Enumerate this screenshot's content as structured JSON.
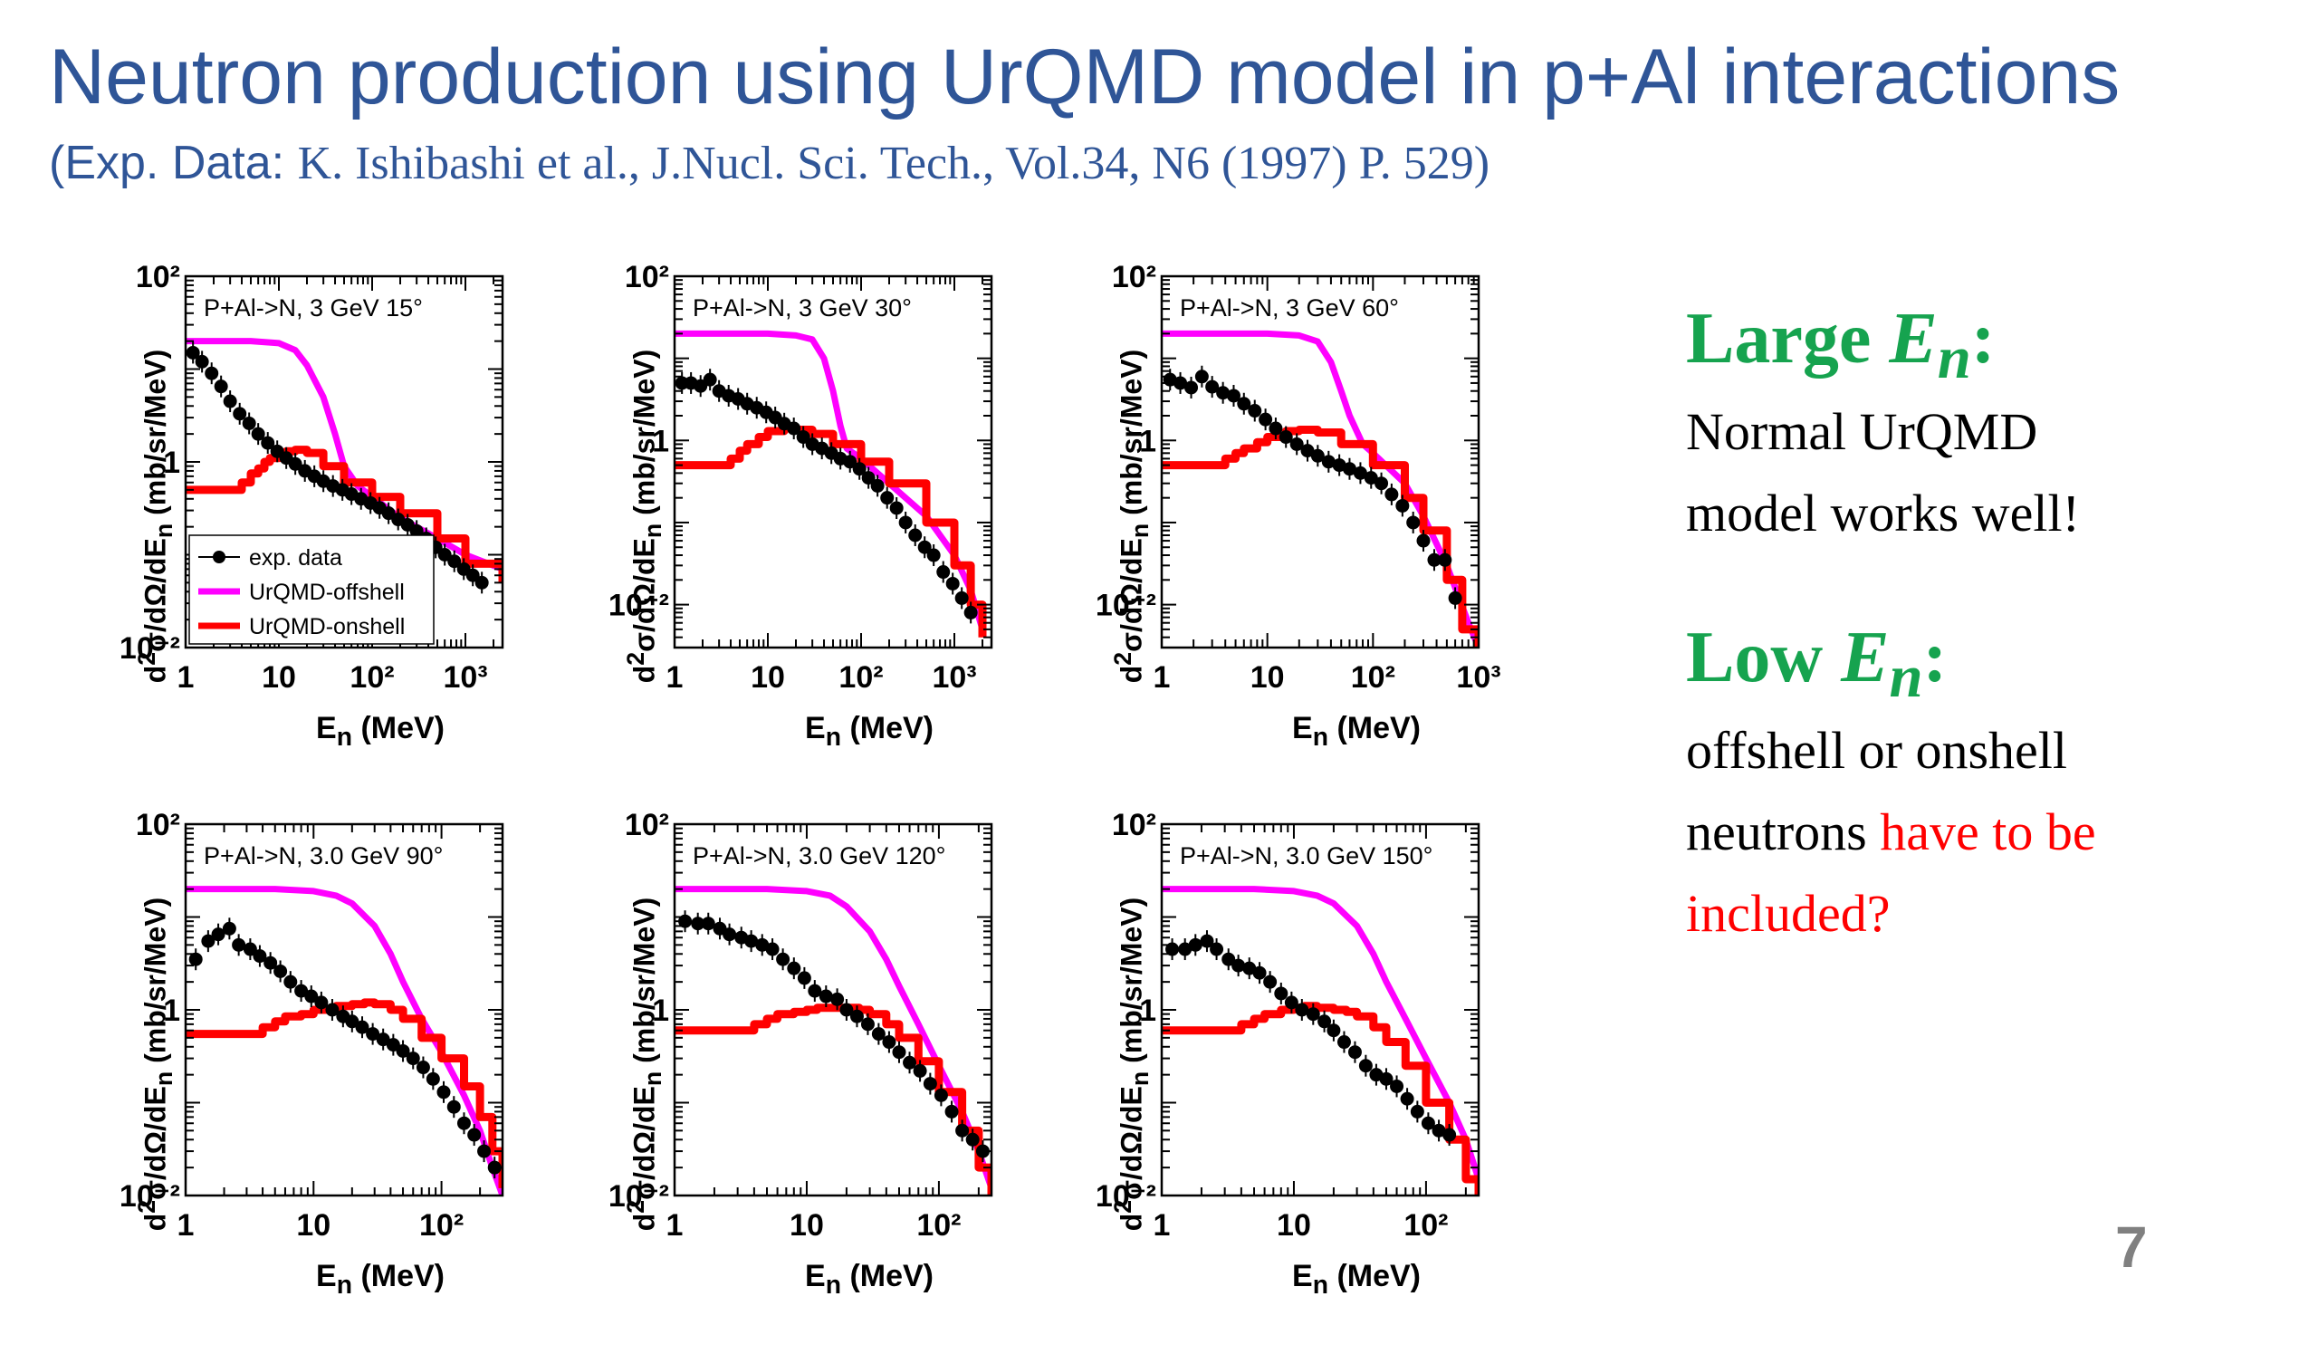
{
  "slide": {
    "title": "Neutron production using UrQMD model in p+Al interactions",
    "subtitle_prefix": "(Exp. Data: ",
    "subtitle_ref": "K. Ishibashi  et al., J.Nucl. Sci. Tech., Vol.34, N6 (1997)  P. 529)",
    "page_number": "7"
  },
  "side_text": {
    "large_heading": "Large ",
    "large_var": "E",
    "large_sub": "n",
    "large_colon": ":",
    "large_line1": "Normal UrQMD",
    "large_line2": "model works well!",
    "low_heading": "Low ",
    "low_var": "E",
    "low_sub": "n",
    "low_colon": ":",
    "low_line1": "offshell or onshell",
    "low_line2_black": "neutrons ",
    "low_line2_red": "have to be",
    "low_line3_red": "included?"
  },
  "colors": {
    "title": "#2f5597",
    "green": "#16a34f",
    "red_text": "#ff0000",
    "offshell": "#ff00ff",
    "onshell": "#ff0000",
    "data": "#000000",
    "page_number": "#808080"
  },
  "chart_data": [
    {
      "type": "scatter",
      "title": "P+Al->N, 3 GeV 15°",
      "xlabel": "E_n (MeV)",
      "ylabel": "d²σ/dΩ/dE_n (mb/sr/MeV)",
      "xscale": "log",
      "yscale": "log",
      "xlim": [
        1,
        2500
      ],
      "ylim": [
        0.01,
        100
      ],
      "xticks": [
        "1",
        "10",
        "10²",
        "10³"
      ],
      "yticks": [
        "10⁻²",
        "1",
        "10²"
      ],
      "legend": {
        "position": "bottom-left",
        "entries": [
          "exp. data",
          "UrQMD-offshell",
          "UrQMD-onshell"
        ]
      },
      "series": [
        {
          "name": "exp. data",
          "kind": "points",
          "x": [
            1.2,
            1.5,
            1.9,
            2.4,
            3,
            3.8,
            4.8,
            6,
            7.6,
            9.6,
            12,
            15,
            19,
            24,
            30,
            38,
            48,
            60,
            76,
            96,
            120,
            150,
            190,
            240,
            300,
            380,
            480,
            600,
            760,
            960,
            1200,
            1500
          ],
          "y": [
            15,
            12,
            9,
            6.5,
            4.5,
            3.3,
            2.6,
            2,
            1.6,
            1.3,
            1.1,
            0.95,
            0.8,
            0.7,
            0.62,
            0.55,
            0.5,
            0.45,
            0.4,
            0.36,
            0.32,
            0.28,
            0.24,
            0.21,
            0.18,
            0.15,
            0.12,
            0.1,
            0.085,
            0.07,
            0.06,
            0.05
          ]
        },
        {
          "name": "UrQMD-offshell",
          "kind": "line",
          "x": [
            1,
            2,
            5,
            10,
            15,
            20,
            30,
            40,
            50,
            70,
            100,
            200,
            500,
            1000,
            2500
          ],
          "y": [
            20,
            20,
            20,
            19,
            16,
            11,
            5,
            2,
            0.9,
            0.55,
            0.42,
            0.25,
            0.15,
            0.1,
            0.07
          ]
        },
        {
          "name": "UrQMD-onshell",
          "kind": "step",
          "x": [
            1,
            3,
            4,
            5,
            6,
            7,
            8,
            10,
            12,
            15,
            20,
            30,
            50,
            100,
            200,
            500,
            1000,
            2500
          ],
          "y": [
            0.5,
            0.5,
            0.6,
            0.75,
            0.85,
            1,
            1.1,
            1.2,
            1.3,
            1.35,
            1.25,
            0.9,
            0.6,
            0.42,
            0.28,
            0.15,
            0.08,
            0.05
          ]
        }
      ]
    },
    {
      "type": "scatter",
      "title": "P+Al->N, 3 GeV 30°",
      "xlabel": "E_n (MeV)",
      "ylabel": "d²σ/dΩ/dE_n (mb/sr/MeV)",
      "xscale": "log",
      "yscale": "log",
      "xlim": [
        1,
        2500
      ],
      "ylim": [
        0.003,
        100
      ],
      "xticks": [
        "1",
        "10",
        "10²",
        "10³"
      ],
      "yticks": [
        "10⁻²",
        "1",
        "10²"
      ],
      "series": [
        {
          "name": "exp. data",
          "kind": "points",
          "x": [
            1.2,
            1.5,
            1.9,
            2.4,
            3,
            3.8,
            4.8,
            6,
            7.6,
            9.6,
            12,
            15,
            19,
            24,
            30,
            38,
            48,
            60,
            76,
            96,
            120,
            150,
            190,
            240,
            300,
            380,
            480,
            600,
            760,
            960,
            1200,
            1500
          ],
          "y": [
            5,
            5,
            4.6,
            5.5,
            4,
            3.5,
            3.2,
            2.8,
            2.5,
            2.2,
            1.9,
            1.6,
            1.4,
            1.1,
            0.9,
            0.8,
            0.7,
            0.6,
            0.55,
            0.45,
            0.35,
            0.28,
            0.2,
            0.15,
            0.1,
            0.07,
            0.05,
            0.04,
            0.025,
            0.018,
            0.012,
            0.008
          ]
        },
        {
          "name": "UrQMD-offshell",
          "kind": "line",
          "x": [
            1,
            5,
            10,
            20,
            30,
            40,
            50,
            60,
            70,
            100,
            200,
            500,
            1000,
            1500,
            2000
          ],
          "y": [
            20,
            20,
            20,
            19,
            17,
            10,
            4,
            1.5,
            0.8,
            0.6,
            0.3,
            0.12,
            0.04,
            0.015,
            0.005
          ]
        },
        {
          "name": "UrQMD-onshell",
          "kind": "step",
          "x": [
            1,
            3,
            4,
            5,
            6,
            8,
            10,
            15,
            20,
            30,
            50,
            100,
            200,
            500,
            1000,
            1500,
            2000
          ],
          "y": [
            0.5,
            0.5,
            0.6,
            0.75,
            0.9,
            1.1,
            1.3,
            1.4,
            1.35,
            1.2,
            0.9,
            0.55,
            0.3,
            0.1,
            0.03,
            0.01,
            0.004
          ]
        }
      ]
    },
    {
      "type": "scatter",
      "title": "P+Al->N, 3 GeV 60°",
      "xlabel": "E_n (MeV)",
      "ylabel": "d²σ/dΩ/dE_n (mb/sr/MeV)",
      "xscale": "log",
      "yscale": "log",
      "xlim": [
        1,
        1000
      ],
      "ylim": [
        0.003,
        100
      ],
      "xticks": [
        "1",
        "10",
        "10²",
        "10³"
      ],
      "yticks": [
        "10⁻²",
        "1",
        "10²"
      ],
      "series": [
        {
          "name": "exp. data",
          "kind": "points",
          "x": [
            1.2,
            1.5,
            1.9,
            2.4,
            3,
            3.8,
            4.8,
            6,
            7.6,
            9.6,
            12,
            15,
            19,
            24,
            30,
            38,
            48,
            60,
            76,
            96,
            120,
            150,
            190,
            240,
            300,
            380,
            480,
            600
          ],
          "y": [
            5.5,
            5,
            4.4,
            6,
            4.5,
            3.8,
            3.5,
            2.8,
            2.3,
            1.8,
            1.4,
            1.1,
            0.9,
            0.75,
            0.65,
            0.55,
            0.5,
            0.45,
            0.4,
            0.35,
            0.3,
            0.22,
            0.16,
            0.1,
            0.06,
            0.035,
            0.035,
            0.012
          ]
        },
        {
          "name": "UrQMD-offshell",
          "kind": "line",
          "x": [
            1,
            5,
            10,
            20,
            30,
            40,
            50,
            60,
            80,
            100,
            200,
            300,
            500,
            800,
            1000
          ],
          "y": [
            20,
            20,
            20,
            19,
            16,
            9,
            4,
            2,
            0.9,
            0.7,
            0.3,
            0.12,
            0.03,
            0.006,
            0.003
          ]
        },
        {
          "name": "UrQMD-onshell",
          "kind": "step",
          "x": [
            1,
            3,
            4,
            5,
            6,
            8,
            10,
            15,
            20,
            30,
            50,
            100,
            200,
            300,
            500,
            700,
            1000
          ],
          "y": [
            0.5,
            0.5,
            0.6,
            0.7,
            0.8,
            0.95,
            1.1,
            1.3,
            1.35,
            1.25,
            0.9,
            0.5,
            0.2,
            0.08,
            0.02,
            0.005,
            0.003
          ]
        }
      ]
    },
    {
      "type": "scatter",
      "title": "P+Al->N, 3.0 GeV 90°",
      "xlabel": "E_n (MeV)",
      "ylabel": "d²σ/dΩ/dE_n (mb/sr/MeV)",
      "xscale": "log",
      "yscale": "log",
      "xlim": [
        1,
        300
      ],
      "ylim": [
        0.01,
        100
      ],
      "xticks": [
        "1",
        "10",
        "10²"
      ],
      "yticks": [
        "10⁻²",
        "1",
        "10²"
      ],
      "series": [
        {
          "name": "exp. data",
          "kind": "points",
          "x": [
            1.2,
            1.5,
            1.8,
            2.2,
            2.6,
            3.2,
            3.8,
            4.6,
            5.5,
            6.6,
            8,
            9.6,
            11.5,
            14,
            17,
            20,
            24,
            29,
            35,
            42,
            50,
            60,
            72,
            86,
            104,
            125,
            150,
            180,
            215,
            260
          ],
          "y": [
            3.5,
            5.5,
            6.5,
            7.5,
            5,
            4.5,
            3.8,
            3.2,
            2.6,
            2,
            1.6,
            1.4,
            1.2,
            1,
            0.85,
            0.75,
            0.65,
            0.55,
            0.48,
            0.42,
            0.36,
            0.3,
            0.24,
            0.18,
            0.13,
            0.09,
            0.06,
            0.045,
            0.03,
            0.02
          ]
        },
        {
          "name": "UrQMD-offshell",
          "kind": "line",
          "x": [
            1,
            5,
            10,
            15,
            20,
            30,
            40,
            50,
            70,
            100,
            150,
            200,
            250,
            300
          ],
          "y": [
            20,
            20,
            19,
            17,
            14,
            8,
            4,
            2,
            0.8,
            0.35,
            0.12,
            0.05,
            0.02,
            0.01
          ]
        },
        {
          "name": "UrQMD-onshell",
          "kind": "step",
          "x": [
            1,
            3,
            4,
            5,
            6,
            8,
            10,
            15,
            20,
            25,
            30,
            40,
            50,
            70,
            100,
            150,
            200,
            250,
            300
          ],
          "y": [
            0.55,
            0.55,
            0.65,
            0.75,
            0.85,
            0.9,
            1,
            1.1,
            1.15,
            1.2,
            1.15,
            1,
            0.8,
            0.5,
            0.3,
            0.15,
            0.07,
            0.03,
            0.012
          ]
        }
      ]
    },
    {
      "type": "scatter",
      "title": "P+Al->N, 3.0 GeV 120°",
      "xlabel": "E_n (MeV)",
      "ylabel": "d²σ/dΩ/dE_n (mb/sr/MeV)",
      "xscale": "log",
      "yscale": "log",
      "xlim": [
        1,
        250
      ],
      "ylim": [
        0.01,
        100
      ],
      "xticks": [
        "1",
        "10",
        "10²"
      ],
      "yticks": [
        "10⁻²",
        "1",
        "10²"
      ],
      "series": [
        {
          "name": "exp. data",
          "kind": "points",
          "x": [
            1.2,
            1.5,
            1.8,
            2.2,
            2.6,
            3.2,
            3.8,
            4.6,
            5.5,
            6.6,
            8,
            9.6,
            11.5,
            14,
            17,
            20,
            24,
            29,
            35,
            42,
            50,
            60,
            72,
            86,
            104,
            125,
            150,
            180,
            215
          ],
          "y": [
            9,
            8.5,
            8.5,
            7.5,
            6.5,
            6,
            5.5,
            5,
            4.5,
            3.5,
            2.8,
            2.2,
            1.6,
            1.4,
            1.3,
            1,
            0.85,
            0.7,
            0.55,
            0.45,
            0.35,
            0.27,
            0.22,
            0.16,
            0.12,
            0.08,
            0.05,
            0.04,
            0.03
          ]
        },
        {
          "name": "UrQMD-offshell",
          "kind": "line",
          "x": [
            1,
            5,
            10,
            15,
            20,
            30,
            40,
            50,
            70,
            100,
            150,
            200,
            250
          ],
          "y": [
            20,
            20,
            19,
            17,
            13,
            7,
            3.5,
            1.8,
            0.7,
            0.25,
            0.08,
            0.03,
            0.012
          ]
        },
        {
          "name": "UrQMD-onshell",
          "kind": "step",
          "x": [
            1,
            3,
            4,
            5,
            6,
            8,
            10,
            12,
            15,
            20,
            25,
            30,
            40,
            50,
            70,
            100,
            150,
            200,
            250
          ],
          "y": [
            0.6,
            0.6,
            0.7,
            0.8,
            0.9,
            0.95,
            1,
            1.05,
            1.05,
            1.05,
            1,
            0.9,
            0.7,
            0.5,
            0.28,
            0.13,
            0.05,
            0.02,
            0.01
          ]
        }
      ]
    },
    {
      "type": "scatter",
      "title": "P+Al->N, 3.0 GeV 150°",
      "xlabel": "E_n (MeV)",
      "ylabel": "d²σ/dΩ/dE_n (mb/sr/MeV)",
      "xscale": "log",
      "yscale": "log",
      "xlim": [
        1,
        250
      ],
      "ylim": [
        0.01,
        100
      ],
      "xticks": [
        "1",
        "10",
        "10²"
      ],
      "yticks": [
        "10⁻²",
        "1",
        "10²"
      ],
      "series": [
        {
          "name": "exp. data",
          "kind": "points",
          "x": [
            1.2,
            1.5,
            1.8,
            2.2,
            2.6,
            3.2,
            3.8,
            4.6,
            5.5,
            6.6,
            8,
            9.6,
            11.5,
            14,
            17,
            20,
            24,
            29,
            35,
            42,
            50,
            60,
            72,
            86,
            104,
            125,
            150
          ],
          "y": [
            4.5,
            4.5,
            5,
            5.5,
            4.5,
            3.5,
            3,
            2.8,
            2.5,
            2,
            1.5,
            1.2,
            1,
            0.9,
            0.75,
            0.6,
            0.45,
            0.35,
            0.25,
            0.2,
            0.18,
            0.15,
            0.11,
            0.08,
            0.06,
            0.05,
            0.045
          ]
        },
        {
          "name": "UrQMD-offshell",
          "kind": "line",
          "x": [
            1,
            5,
            10,
            15,
            20,
            30,
            40,
            50,
            70,
            100,
            150,
            200,
            250
          ],
          "y": [
            20,
            20,
            19,
            17,
            14,
            8,
            4,
            2,
            0.8,
            0.3,
            0.1,
            0.04,
            0.015
          ]
        },
        {
          "name": "UrQMD-onshell",
          "kind": "step",
          "x": [
            1,
            3,
            4,
            5,
            6,
            8,
            10,
            12,
            15,
            20,
            25,
            30,
            40,
            50,
            70,
            100,
            150,
            200,
            250
          ],
          "y": [
            0.6,
            0.6,
            0.7,
            0.8,
            0.9,
            1,
            1.05,
            1.1,
            1.05,
            1,
            0.95,
            0.85,
            0.65,
            0.45,
            0.25,
            0.1,
            0.04,
            0.015,
            0.01
          ]
        }
      ]
    }
  ]
}
